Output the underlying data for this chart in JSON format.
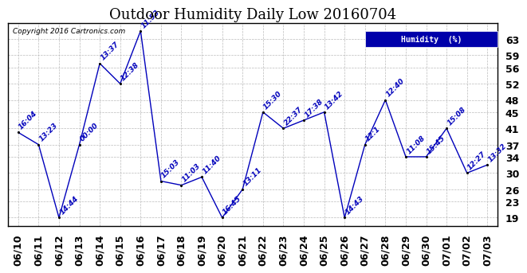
{
  "title": "Outdoor Humidity Daily Low 20160704",
  "copyright": "Copyright 2016 Cartronics.com",
  "legend_label": "Humidity  (%)",
  "x_labels": [
    "06/10",
    "06/11",
    "06/12",
    "06/13",
    "06/14",
    "06/15",
    "06/16",
    "06/17",
    "06/18",
    "06/19",
    "06/20",
    "06/21",
    "06/22",
    "06/23",
    "06/24",
    "06/25",
    "06/26",
    "06/27",
    "06/28",
    "06/29",
    "06/30",
    "07/01",
    "07/02",
    "07/03"
  ],
  "y_values": [
    40,
    37,
    19,
    37,
    57,
    52,
    65,
    28,
    27,
    29,
    19,
    26,
    45,
    41,
    43,
    45,
    19,
    37,
    48,
    34,
    34,
    41,
    30,
    32
  ],
  "time_labels": [
    "16:04",
    "13:23",
    "14:44",
    "00:00",
    "13:37",
    "12:38",
    "11:53",
    "15:03",
    "11:03",
    "11:40",
    "16:45",
    "13:11",
    "15:30",
    "22:37",
    "17:38",
    "13:42",
    "14:43",
    "12:1",
    "12:40",
    "11:08",
    "15:45",
    "15:08",
    "12:27",
    "13:32"
  ],
  "line_color": "#0000bb",
  "marker_color": "#000000",
  "bg_color": "#ffffff",
  "grid_color": "#bbbbbb",
  "ylim": [
    17,
    67
  ],
  "yticks": [
    19,
    23,
    26,
    30,
    34,
    37,
    41,
    45,
    48,
    52,
    56,
    59,
    63
  ],
  "title_fontsize": 13,
  "tick_fontsize": 9,
  "annot_fontsize": 6.5
}
